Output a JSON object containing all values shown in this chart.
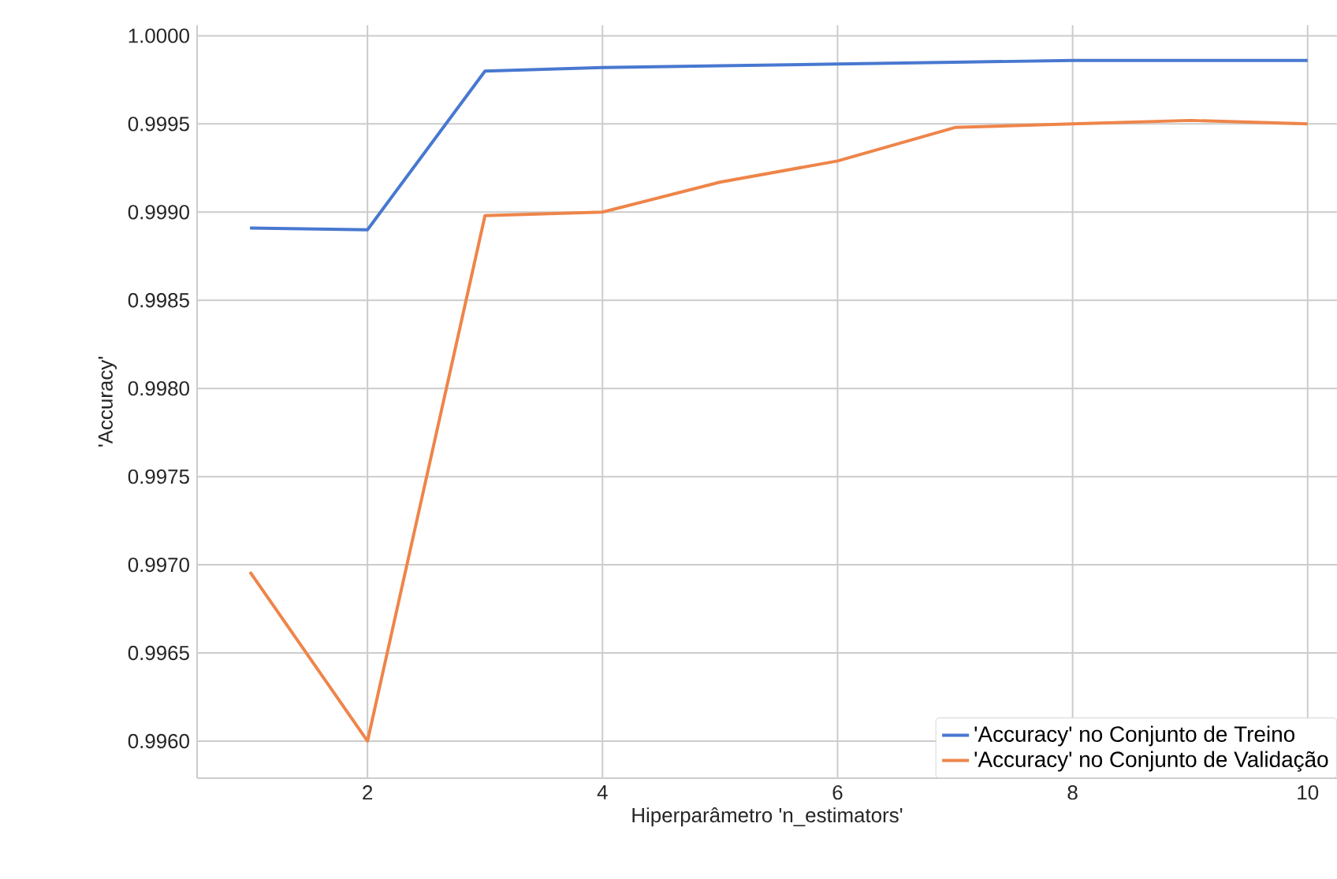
{
  "chart_data": {
    "type": "line",
    "xlabel": "Hiperparâmetro 'n_estimators'",
    "ylabel": "'Accuracy'",
    "x": [
      1,
      2,
      3,
      4,
      5,
      6,
      7,
      8,
      9,
      10
    ],
    "series": [
      {
        "name": "'Accuracy' no Conjunto de Treino",
        "color": "#4878d0",
        "values": [
          0.99891,
          0.9989,
          0.9998,
          0.99982,
          0.99983,
          0.99984,
          0.99985,
          0.99986,
          0.99986,
          0.99986
        ]
      },
      {
        "name": "'Accuracy' no Conjunto de Validação",
        "color": "#ee854a",
        "values": [
          0.99696,
          0.996,
          0.99898,
          0.999,
          0.99917,
          0.99929,
          0.99948,
          0.9995,
          0.99952,
          0.9995
        ]
      }
    ],
    "xlim": [
      0.55,
      10.25
    ],
    "ylim": [
      0.99579,
      1.00006
    ],
    "xticks": [
      2,
      4,
      6,
      8,
      10
    ],
    "yticks": [
      {
        "value": 0.996,
        "label": "0.9960"
      },
      {
        "value": 0.9965,
        "label": "0.9965"
      },
      {
        "value": 0.997,
        "label": "0.9970"
      },
      {
        "value": 0.9975,
        "label": "0.9975"
      },
      {
        "value": 0.998,
        "label": "0.9980"
      },
      {
        "value": 0.9985,
        "label": "0.9985"
      },
      {
        "value": 0.999,
        "label": "0.9990"
      },
      {
        "value": 0.9995,
        "label": "0.9995"
      },
      {
        "value": 1.0,
        "label": "1.0000"
      }
    ],
    "grid": true,
    "legend": "bottom right",
    "marker": "none",
    "line_style": "solid"
  }
}
